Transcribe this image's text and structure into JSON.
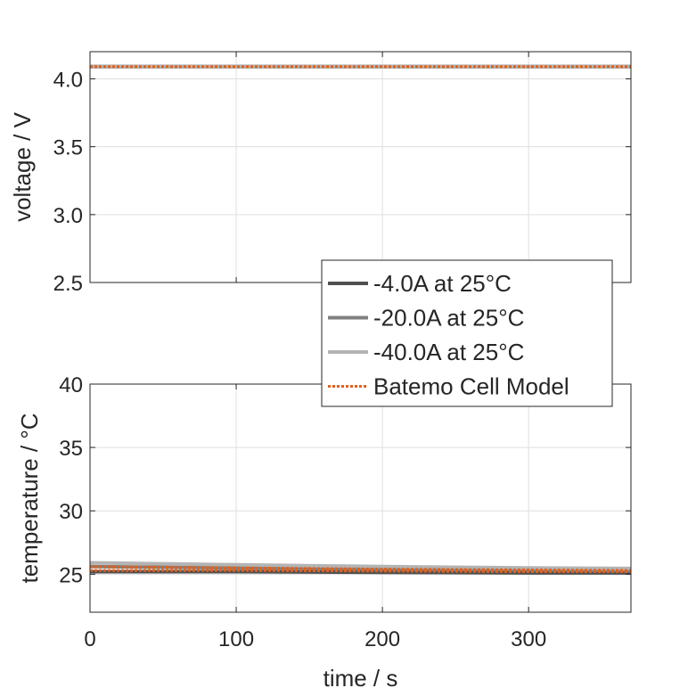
{
  "chart_data": [
    {
      "type": "line",
      "xlabel": "",
      "ylabel": "voltage / V",
      "xlim": [
        0,
        370
      ],
      "ylim": [
        2.5,
        4.2
      ],
      "xticks": [
        0,
        100,
        200,
        300
      ],
      "yticks": [
        2.5,
        3.0,
        3.5,
        4.0
      ],
      "ytick_labels": [
        "2.5",
        "3.0",
        "3.5",
        "4.0"
      ],
      "show_xtick_labels": false,
      "grid": true,
      "series": [
        {
          "name": "-4.0A at 25°C",
          "color": "#505050",
          "style": "solid",
          "x": [
            0,
            370
          ],
          "y": [
            4.09,
            4.09
          ]
        },
        {
          "name": "-20.0A at 25°C",
          "color": "#808080",
          "style": "solid",
          "x": [
            0,
            370
          ],
          "y": [
            4.09,
            4.09
          ]
        },
        {
          "name": "-40.0A at 25°C",
          "color": "#b4b4b4",
          "style": "solid",
          "x": [
            0,
            370
          ],
          "y": [
            4.09,
            4.09
          ]
        },
        {
          "name": "Batemo Cell Model",
          "color": "#e0621e",
          "style": "dotted",
          "x": [
            0,
            370
          ],
          "y": [
            4.09,
            4.09
          ]
        }
      ]
    },
    {
      "type": "line",
      "xlabel": "time / s",
      "ylabel": "temperature / °C",
      "xlim": [
        0,
        370
      ],
      "ylim": [
        22,
        40
      ],
      "xticks": [
        0,
        100,
        200,
        300
      ],
      "xtick_labels": [
        "0",
        "100",
        "200",
        "300"
      ],
      "yticks": [
        25,
        30,
        35,
        40
      ],
      "ytick_labels": [
        "25",
        "30",
        "35",
        "40"
      ],
      "show_xtick_labels": true,
      "grid": true,
      "series": [
        {
          "name": "-4.0A at 25°C",
          "color": "#505050",
          "style": "solid",
          "x": [
            0,
            100,
            200,
            300,
            370
          ],
          "y": [
            25.2,
            25.2,
            25.15,
            25.1,
            25.1
          ]
        },
        {
          "name": "-20.0A at 25°C",
          "color": "#808080",
          "style": "solid",
          "x": [
            0,
            100,
            200,
            300,
            370
          ],
          "y": [
            25.6,
            25.5,
            25.4,
            25.35,
            25.3
          ]
        },
        {
          "name": "-40.0A at 25°C",
          "color": "#b4b4b4",
          "style": "solid",
          "x": [
            0,
            100,
            200,
            300,
            370
          ],
          "y": [
            25.9,
            25.75,
            25.6,
            25.5,
            25.45
          ]
        },
        {
          "name": "Batemo Cell Model",
          "color": "#e0621e",
          "style": "dotted",
          "x": [
            0,
            100,
            200,
            300,
            370
          ],
          "y": [
            25.3,
            25.3,
            25.25,
            25.2,
            25.2
          ]
        },
        {
          "name": "Batemo Cell Model",
          "color": "#e0621e",
          "style": "dotted",
          "x": [
            0,
            100,
            200,
            300,
            370
          ],
          "y": [
            25.6,
            25.5,
            25.4,
            25.35,
            25.3
          ]
        }
      ]
    }
  ],
  "legend": {
    "placement": "between-axes-right",
    "entries": [
      {
        "label": "-4.0A at 25°C",
        "color": "#505050",
        "style": "solid"
      },
      {
        "label": "-20.0A at 25°C",
        "color": "#808080",
        "style": "solid"
      },
      {
        "label": "-40.0A at 25°C",
        "color": "#b4b4b4",
        "style": "solid"
      },
      {
        "label": "Batemo Cell Model",
        "color": "#e0621e",
        "style": "dotted"
      }
    ]
  }
}
